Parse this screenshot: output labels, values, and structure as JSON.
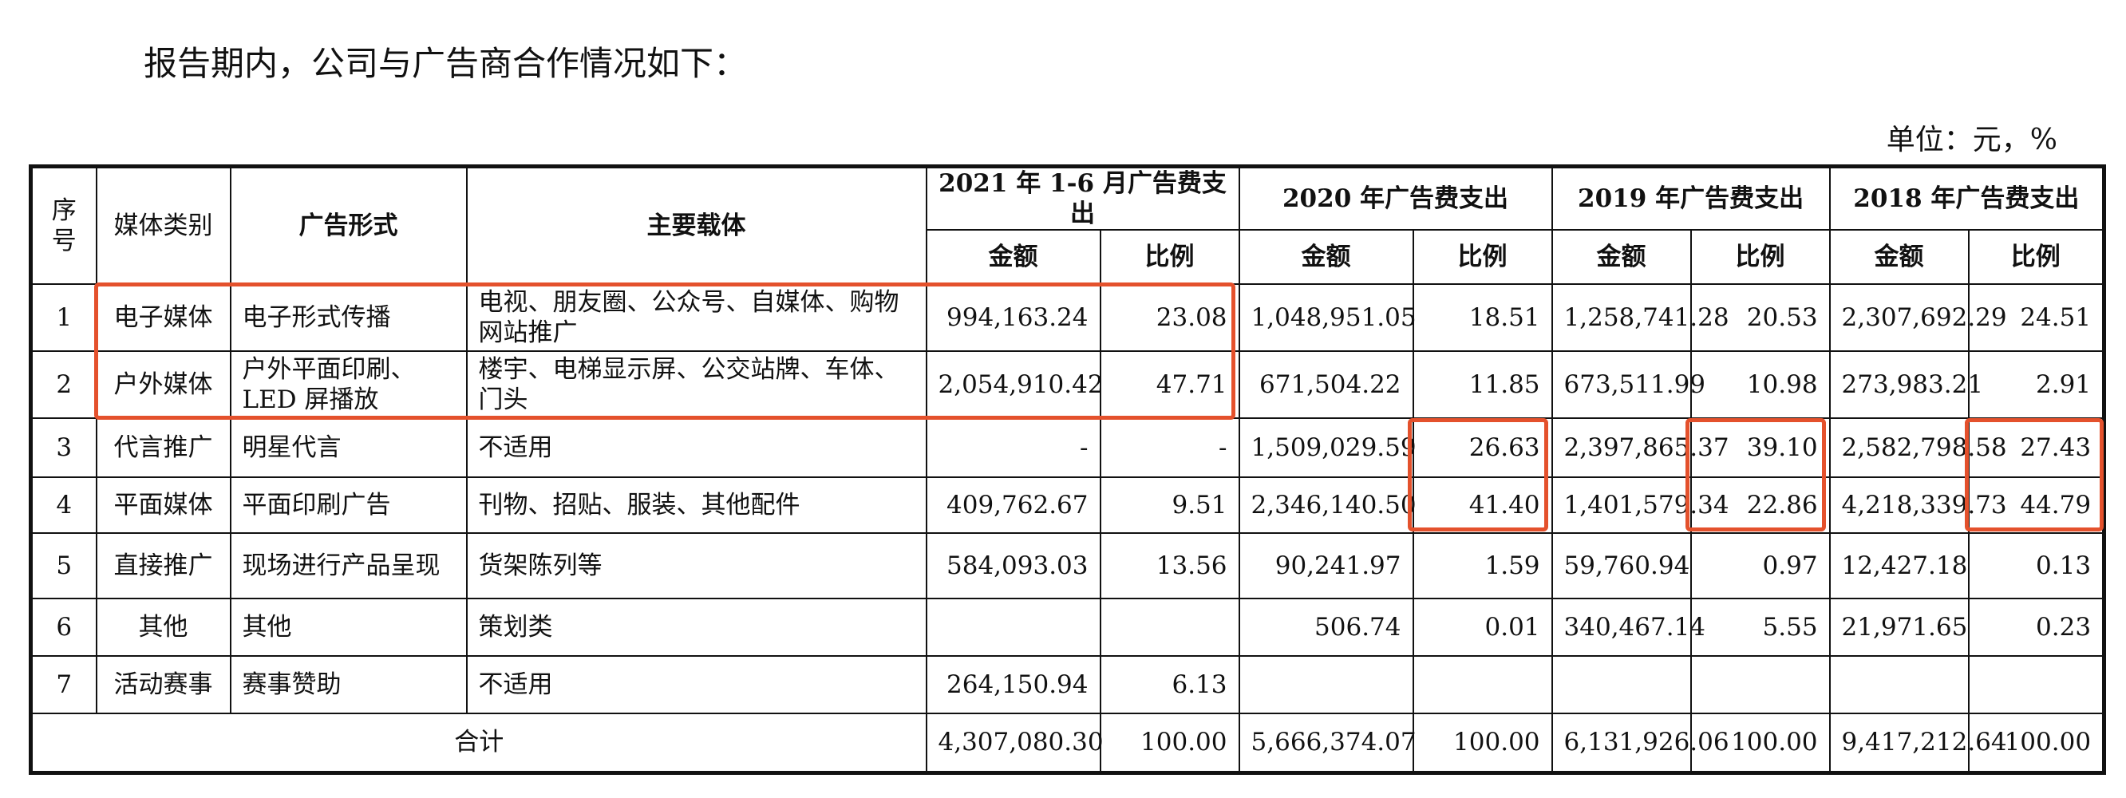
{
  "intro_text": "报告期内，公司与广告商合作情况如下：",
  "unit_text": "单位：元，%",
  "headers": {
    "seq": "序号",
    "media_type": "媒体类别",
    "ad_form": "广告形式",
    "carrier": "主要载体",
    "periods": [
      "2021 年 1-6 月广告费支出",
      "2020 年广告费支出",
      "2019 年广告费支出",
      "2018 年广告费支出"
    ],
    "amount": "金额",
    "ratio": "比例"
  },
  "rows": [
    {
      "seq": "1",
      "media": "电子媒体",
      "form": "电子形式传播",
      "carrier": "电视、朋友圈、公众号、自媒体、购物网站推广",
      "a2021": "994,163.24",
      "r2021": "23.08",
      "a2020": "1,048,951.05",
      "r2020": "18.51",
      "a2019": "1,258,741.28",
      "r2019": "20.53",
      "a2018": "2,307,692.29",
      "r2018": "24.51"
    },
    {
      "seq": "2",
      "media": "户外媒体",
      "form": "户外平面印刷、LED 屏播放",
      "carrier": "楼宇、电梯显示屏、公交站牌、车体、门头",
      "a2021": "2,054,910.42",
      "r2021": "47.71",
      "a2020": "671,504.22",
      "r2020": "11.85",
      "a2019": "673,511.99",
      "r2019": "10.98",
      "a2018": "273,983.21",
      "r2018": "2.91"
    },
    {
      "seq": "3",
      "media": "代言推广",
      "form": "明星代言",
      "carrier": "不适用",
      "a2021": "-",
      "r2021": "-",
      "a2020": "1,509,029.59",
      "r2020": "26.63",
      "a2019": "2,397,865.37",
      "r2019": "39.10",
      "a2018": "2,582,798.58",
      "r2018": "27.43"
    },
    {
      "seq": "4",
      "media": "平面媒体",
      "form": "平面印刷广告",
      "carrier": "刊物、招贴、服装、其他配件",
      "a2021": "409,762.67",
      "r2021": "9.51",
      "a2020": "2,346,140.50",
      "r2020": "41.40",
      "a2019": "1,401,579.34",
      "r2019": "22.86",
      "a2018": "4,218,339.73",
      "r2018": "44.79"
    },
    {
      "seq": "5",
      "media": "直接推广",
      "form": "现场进行产品呈现",
      "carrier": "货架陈列等",
      "a2021": "584,093.03",
      "r2021": "13.56",
      "a2020": "90,241.97",
      "r2020": "1.59",
      "a2019": "59,760.94",
      "r2019": "0.97",
      "a2018": "12,427.18",
      "r2018": "0.13"
    },
    {
      "seq": "6",
      "media": "其他",
      "form": "其他",
      "carrier": "策划类",
      "a2021": "",
      "r2021": "",
      "a2020": "506.74",
      "r2020": "0.01",
      "a2019": "340,467.14",
      "r2019": "5.55",
      "a2018": "21,971.65",
      "r2018": "0.23"
    },
    {
      "seq": "7",
      "media": "活动赛事",
      "form": "赛事赞助",
      "carrier": "不适用",
      "a2021": "264,150.94",
      "r2021": "6.13",
      "a2020": "",
      "r2020": "",
      "a2019": "",
      "r2019": "",
      "a2018": "",
      "r2018": ""
    }
  ],
  "total": {
    "label": "合计",
    "a2021": "4,307,080.30",
    "r2021": "100.00",
    "a2020": "5,666,374.07",
    "r2020": "100.00",
    "a2019": "6,131,926.06",
    "r2019": "100.00",
    "a2018": "9,417,212.64",
    "r2018": "100.00"
  },
  "highlight_color": "#e4512c"
}
